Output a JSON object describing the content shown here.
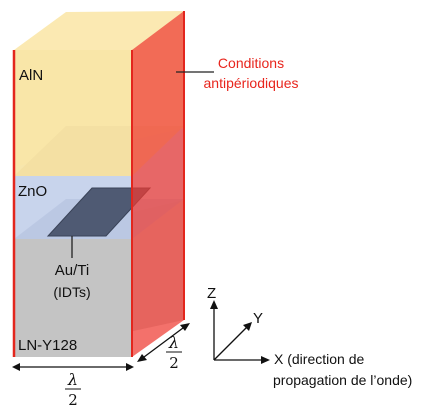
{
  "layers": {
    "top": "AlN",
    "middle": "ZnO",
    "bottom": "LN-Y128"
  },
  "electrode": {
    "line1": "Au/Ti",
    "line2": "(IDTs)"
  },
  "boundary_annotation": {
    "line1": "Conditions",
    "line2": "antipériodiques"
  },
  "dimensions": {
    "width_symbol": "λ",
    "width_divisor": "2",
    "depth_symbol": "λ",
    "depth_divisor": "2"
  },
  "axes": {
    "z": "Z",
    "y": "Y",
    "x": "X (direction de",
    "x_cont": "propagation de l’onde)"
  },
  "colors": {
    "aln": "#f9e6a8",
    "zno": "#c8d4ec",
    "ln": "#c4c4c4",
    "electrode": "#4f5a73",
    "boundary": "#ee3a32",
    "annotation_text": "#e8251d"
  }
}
